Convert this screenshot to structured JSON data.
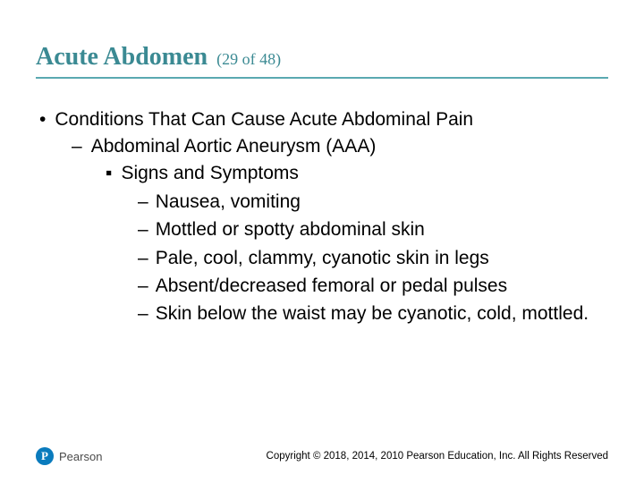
{
  "title": {
    "main": "Acute Abdomen",
    "counter": "(29 of 48)",
    "color": "#3b8a93",
    "underline_color": "#5aa9b1",
    "main_fontsize": 28,
    "counter_fontsize": 18
  },
  "body": {
    "fontsize": 21,
    "color": "#000000",
    "lvl1_bullet": "•",
    "lvl2_bullet": "–",
    "lvl3_bullet": "▪",
    "lvl4_bullet": "–",
    "lvl1_text": "Conditions That Can Cause Acute Abdominal Pain",
    "lvl2_text": "Abdominal Aortic Aneurysm (AAA)",
    "lvl3_text": "Signs and Symptoms",
    "lvl4_items": [
      "Nausea, vomiting",
      "Mottled or spotty abdominal skin",
      "Pale, cool, clammy, cyanotic skin in legs",
      "Absent/decreased femoral or pedal pulses",
      "Skin below the waist may be cyanotic, cold, mottled."
    ]
  },
  "footer": {
    "logo_letter": "P",
    "logo_name": "Pearson",
    "logo_bg": "#0a7bbd",
    "copyright": "Copyright © 2018, 2014, 2010 Pearson Education, Inc. All Rights Reserved"
  }
}
